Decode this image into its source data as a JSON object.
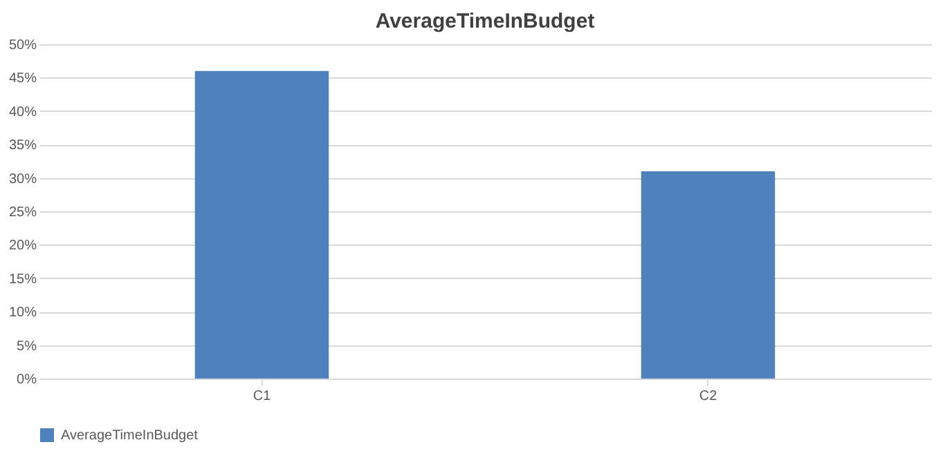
{
  "chart_data": {
    "type": "bar",
    "title": "AverageTimeInBudget",
    "categories": [
      "C1",
      "C2"
    ],
    "series": [
      {
        "name": "AverageTimeInBudget",
        "color": "#4f81bd",
        "values": [
          46,
          31
        ]
      }
    ],
    "ylim": [
      0,
      50
    ],
    "yticks": [
      {
        "value": 0,
        "label": "0%"
      },
      {
        "value": 5,
        "label": "5%"
      },
      {
        "value": 10,
        "label": "10%"
      },
      {
        "value": 15,
        "label": "15%"
      },
      {
        "value": 20,
        "label": "20%"
      },
      {
        "value": 25,
        "label": "25%"
      },
      {
        "value": 30,
        "label": "30%"
      },
      {
        "value": 35,
        "label": "35%"
      },
      {
        "value": 40,
        "label": "40%"
      },
      {
        "value": 45,
        "label": "45%"
      },
      {
        "value": 50,
        "label": "50%"
      }
    ],
    "grid": "y",
    "legend": "bottom"
  }
}
